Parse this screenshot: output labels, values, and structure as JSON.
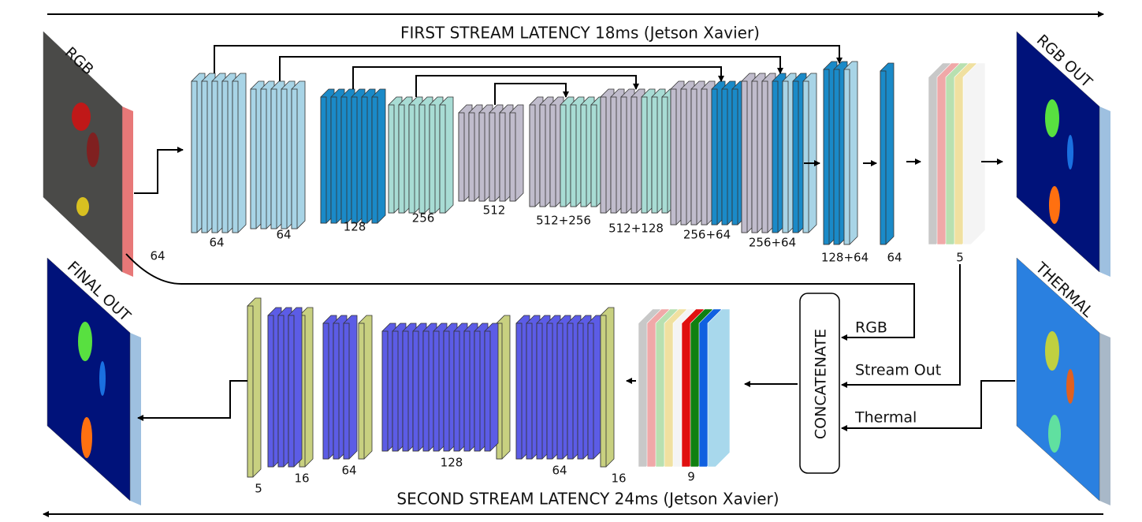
{
  "top_label": "FIRST STREAM LATENCY 18ms (Jetson Xavier)",
  "bottom_label": "SECOND STREAM LATENCY 24ms (Jetson Xavier)",
  "images": {
    "rgb": "RGB",
    "rgb_out": "RGB OUT",
    "thermal": "THERMAL",
    "final_out": "FINAL OUT"
  },
  "first_stream": {
    "layers": [
      "64",
      "64",
      "128",
      "256",
      "512",
      "512+256",
      "512+128",
      "256+64",
      "256+64",
      "128+64",
      "64",
      "5"
    ],
    "skip_label": "64"
  },
  "concatenate": {
    "title": "CONCATENATE",
    "inputs": [
      "RGB",
      "Stream Out",
      "Thermal"
    ]
  },
  "second_stream": {
    "layers": [
      "5",
      "16",
      "64",
      "128",
      "64",
      "16",
      "9"
    ]
  }
}
